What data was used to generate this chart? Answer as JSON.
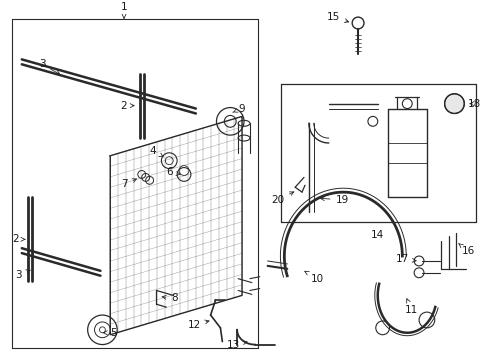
{
  "bg_color": "#ffffff",
  "line_color": "#2a2a2a",
  "label_color": "#1a1a1a",
  "fig_width": 4.9,
  "fig_height": 3.6,
  "dpi": 100
}
